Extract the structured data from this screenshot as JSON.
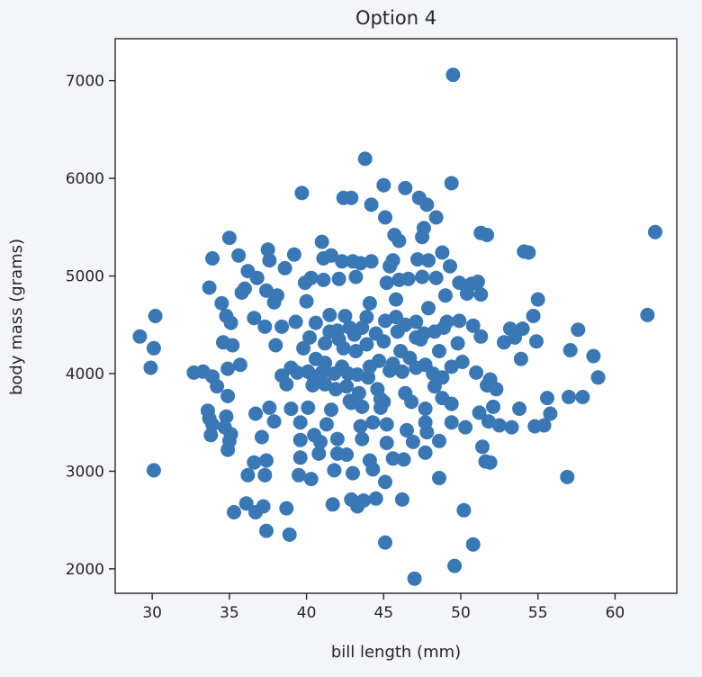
{
  "chart_data": {
    "type": "scatter",
    "title": "Option 4",
    "xlabel": "bill length (mm)",
    "ylabel": "body mass (grams)",
    "xlim": [
      27.6,
      64.0
    ],
    "ylim": [
      1750,
      7430
    ],
    "xticks": [
      30,
      35,
      40,
      45,
      50,
      55,
      60
    ],
    "yticks": [
      2000,
      3000,
      4000,
      5000,
      6000,
      7000
    ],
    "xtick_labels": [
      "30",
      "35",
      "40",
      "45",
      "50",
      "55",
      "60"
    ],
    "ytick_labels": [
      "2000",
      "3000",
      "4000",
      "5000",
      "6000",
      "7000"
    ],
    "grid": false,
    "marker_color": "#3a78b5",
    "points": [
      [
        49.5,
        7060
      ],
      [
        43.8,
        6200
      ],
      [
        39.7,
        5850
      ],
      [
        45.0,
        5930
      ],
      [
        46.4,
        5900
      ],
      [
        49.4,
        5950
      ],
      [
        42.4,
        5800
      ],
      [
        42.9,
        5800
      ],
      [
        44.2,
        5730
      ],
      [
        47.3,
        5800
      ],
      [
        47.8,
        5730
      ],
      [
        48.4,
        5600
      ],
      [
        45.1,
        5600
      ],
      [
        35.0,
        5390
      ],
      [
        41.0,
        5350
      ],
      [
        45.7,
        5420
      ],
      [
        47.6,
        5490
      ],
      [
        47.5,
        5400
      ],
      [
        51.3,
        5440
      ],
      [
        51.7,
        5420
      ],
      [
        54.1,
        5250
      ],
      [
        54.4,
        5240
      ],
      [
        62.6,
        5450
      ],
      [
        34.8,
        4590
      ],
      [
        33.9,
        5180
      ],
      [
        35.6,
        5210
      ],
      [
        36.2,
        5050
      ],
      [
        37.5,
        5270
      ],
      [
        37.6,
        5160
      ],
      [
        39.2,
        5220
      ],
      [
        41.1,
        5180
      ],
      [
        41.6,
        5210
      ],
      [
        42.3,
        5150
      ],
      [
        43.0,
        5150
      ],
      [
        43.5,
        5130
      ],
      [
        44.2,
        5150
      ],
      [
        45.4,
        5100
      ],
      [
        47.2,
        5170
      ],
      [
        47.9,
        5160
      ],
      [
        48.8,
        5240
      ],
      [
        49.3,
        5100
      ],
      [
        36.8,
        4980
      ],
      [
        38.6,
        5080
      ],
      [
        39.9,
        4930
      ],
      [
        40.3,
        4980
      ],
      [
        41.1,
        4960
      ],
      [
        42.1,
        4970
      ],
      [
        43.2,
        4990
      ],
      [
        45.2,
        4930
      ],
      [
        46.0,
        4960
      ],
      [
        46.6,
        4970
      ],
      [
        47.5,
        4990
      ],
      [
        48.4,
        4980
      ],
      [
        49.9,
        4930
      ],
      [
        50.7,
        4920
      ],
      [
        51.1,
        4940
      ],
      [
        33.7,
        4880
      ],
      [
        35.8,
        4830
      ],
      [
        37.4,
        4850
      ],
      [
        37.9,
        4730
      ],
      [
        40.0,
        4740
      ],
      [
        44.1,
        4720
      ],
      [
        45.8,
        4760
      ],
      [
        49.0,
        4800
      ],
      [
        50.4,
        4820
      ],
      [
        51.3,
        4810
      ],
      [
        55.0,
        4760
      ],
      [
        54.7,
        4590
      ],
      [
        34.5,
        4720
      ],
      [
        35.1,
        4520
      ],
      [
        36.6,
        4570
      ],
      [
        37.3,
        4480
      ],
      [
        38.4,
        4480
      ],
      [
        39.3,
        4530
      ],
      [
        40.6,
        4520
      ],
      [
        41.5,
        4430
      ],
      [
        42.0,
        4440
      ],
      [
        42.8,
        4470
      ],
      [
        43.1,
        4400
      ],
      [
        43.6,
        4470
      ],
      [
        44.5,
        4410
      ],
      [
        45.1,
        4540
      ],
      [
        45.9,
        4430
      ],
      [
        46.4,
        4500
      ],
      [
        47.1,
        4530
      ],
      [
        47.6,
        4410
      ],
      [
        48.3,
        4430
      ],
      [
        49.1,
        4530
      ],
      [
        49.9,
        4540
      ],
      [
        50.8,
        4490
      ],
      [
        53.2,
        4460
      ],
      [
        54.0,
        4460
      ],
      [
        57.6,
        4450
      ],
      [
        62.1,
        4600
      ],
      [
        29.2,
        4380
      ],
      [
        30.2,
        4590
      ],
      [
        30.1,
        4260
      ],
      [
        34.6,
        4320
      ],
      [
        35.2,
        4290
      ],
      [
        40.2,
        4370
      ],
      [
        41.2,
        4310
      ],
      [
        42.1,
        4350
      ],
      [
        43.9,
        4300
      ],
      [
        45.0,
        4330
      ],
      [
        46.1,
        4230
      ],
      [
        47.4,
        4350
      ],
      [
        48.6,
        4230
      ],
      [
        49.8,
        4310
      ],
      [
        51.3,
        4380
      ],
      [
        52.8,
        4320
      ],
      [
        53.5,
        4370
      ],
      [
        54.9,
        4330
      ],
      [
        57.1,
        4240
      ],
      [
        29.9,
        4060
      ],
      [
        32.7,
        4010
      ],
      [
        33.3,
        4020
      ],
      [
        33.9,
        3970
      ],
      [
        34.9,
        4050
      ],
      [
        35.7,
        4090
      ],
      [
        38.4,
        3980
      ],
      [
        39.4,
        4010
      ],
      [
        40.1,
        4020
      ],
      [
        40.5,
        3950
      ],
      [
        41.0,
        4010
      ],
      [
        41.8,
        4000
      ],
      [
        42.3,
        4070
      ],
      [
        42.7,
        4000
      ],
      [
        43.3,
        3990
      ],
      [
        44.1,
        4070
      ],
      [
        44.7,
        4130
      ],
      [
        45.6,
        4100
      ],
      [
        46.2,
        4020
      ],
      [
        47.1,
        4060
      ],
      [
        47.7,
        4090
      ],
      [
        48.2,
        4000
      ],
      [
        48.8,
        3960
      ],
      [
        49.4,
        4070
      ],
      [
        50.1,
        4120
      ],
      [
        51.0,
        4010
      ],
      [
        51.9,
        3940
      ],
      [
        53.9,
        4150
      ],
      [
        58.6,
        4180
      ],
      [
        58.9,
        3960
      ],
      [
        34.2,
        3870
      ],
      [
        34.9,
        3770
      ],
      [
        38.7,
        3890
      ],
      [
        40.4,
        3880
      ],
      [
        41.2,
        3890
      ],
      [
        41.9,
        3840
      ],
      [
        42.6,
        3870
      ],
      [
        43.4,
        3800
      ],
      [
        44.6,
        3840
      ],
      [
        46.4,
        3800
      ],
      [
        48.3,
        3870
      ],
      [
        51.7,
        3880
      ],
      [
        52.3,
        3840
      ],
      [
        55.6,
        3750
      ],
      [
        57.0,
        3760
      ],
      [
        57.9,
        3760
      ],
      [
        33.6,
        3620
      ],
      [
        34.8,
        3560
      ],
      [
        36.7,
        3590
      ],
      [
        37.6,
        3650
      ],
      [
        39.0,
        3640
      ],
      [
        40.1,
        3650
      ],
      [
        41.6,
        3630
      ],
      [
        42.9,
        3700
      ],
      [
        43.6,
        3660
      ],
      [
        45.0,
        3710
      ],
      [
        46.8,
        3710
      ],
      [
        47.7,
        3640
      ],
      [
        48.8,
        3750
      ],
      [
        49.4,
        3690
      ],
      [
        51.2,
        3600
      ],
      [
        52.1,
        3660
      ],
      [
        53.8,
        3640
      ],
      [
        55.4,
        3470
      ],
      [
        55.8,
        3590
      ],
      [
        33.9,
        3480
      ],
      [
        34.7,
        3450
      ],
      [
        35.1,
        3380
      ],
      [
        37.9,
        3510
      ],
      [
        39.6,
        3500
      ],
      [
        41.3,
        3480
      ],
      [
        43.5,
        3460
      ],
      [
        44.3,
        3500
      ],
      [
        45.2,
        3480
      ],
      [
        46.5,
        3420
      ],
      [
        47.7,
        3500
      ],
      [
        49.4,
        3500
      ],
      [
        50.3,
        3450
      ],
      [
        51.8,
        3510
      ],
      [
        52.5,
        3470
      ],
      [
        53.3,
        3450
      ],
      [
        54.8,
        3460
      ],
      [
        33.8,
        3370
      ],
      [
        35.0,
        3310
      ],
      [
        37.1,
        3350
      ],
      [
        39.6,
        3320
      ],
      [
        40.9,
        3300
      ],
      [
        42.0,
        3330
      ],
      [
        43.6,
        3330
      ],
      [
        45.2,
        3290
      ],
      [
        46.9,
        3300
      ],
      [
        47.8,
        3400
      ],
      [
        48.6,
        3310
      ],
      [
        51.4,
        3250
      ],
      [
        34.9,
        3220
      ],
      [
        36.6,
        3090
      ],
      [
        37.4,
        3110
      ],
      [
        39.6,
        3140
      ],
      [
        40.8,
        3180
      ],
      [
        42.0,
        3180
      ],
      [
        42.6,
        3170
      ],
      [
        44.1,
        3110
      ],
      [
        45.6,
        3130
      ],
      [
        46.3,
        3120
      ],
      [
        47.7,
        3190
      ],
      [
        51.6,
        3100
      ],
      [
        51.9,
        3090
      ],
      [
        30.1,
        3010
      ],
      [
        36.2,
        2960
      ],
      [
        37.3,
        2960
      ],
      [
        39.5,
        2960
      ],
      [
        40.3,
        2920
      ],
      [
        41.8,
        3010
      ],
      [
        43.0,
        2980
      ],
      [
        44.3,
        3020
      ],
      [
        45.1,
        2890
      ],
      [
        48.6,
        2930
      ],
      [
        56.9,
        2940
      ],
      [
        36.1,
        2670
      ],
      [
        36.7,
        2580
      ],
      [
        37.2,
        2640
      ],
      [
        38.7,
        2620
      ],
      [
        42.9,
        2710
      ],
      [
        43.3,
        2640
      ],
      [
        43.7,
        2700
      ],
      [
        44.5,
        2720
      ],
      [
        46.2,
        2710
      ],
      [
        50.2,
        2600
      ],
      [
        35.3,
        2580
      ],
      [
        37.4,
        2390
      ],
      [
        38.9,
        2350
      ],
      [
        45.1,
        2270
      ],
      [
        50.8,
        2250
      ],
      [
        49.6,
        2030
      ],
      [
        47.0,
        1900
      ],
      [
        41.7,
        2660
      ],
      [
        33.7,
        3540
      ],
      [
        40.5,
        3370
      ],
      [
        44.8,
        3650
      ],
      [
        46.7,
        4160
      ],
      [
        43.2,
        4230
      ],
      [
        42.5,
        4590
      ],
      [
        41.2,
        4110
      ],
      [
        39.8,
        4260
      ],
      [
        44.0,
        3960
      ],
      [
        45.8,
        4580
      ],
      [
        47.9,
        4670
      ],
      [
        38.0,
        4290
      ],
      [
        48.9,
        4470
      ],
      [
        46.0,
        5360
      ],
      [
        45.6,
        5160
      ],
      [
        40.6,
        4150
      ],
      [
        42.4,
        4260
      ],
      [
        43.9,
        4580
      ],
      [
        44.8,
        3740
      ],
      [
        39.0,
        4060
      ],
      [
        42.8,
        3720
      ],
      [
        45.4,
        4030
      ],
      [
        47.1,
        4370
      ],
      [
        41.5,
        4600
      ],
      [
        36.0,
        4870
      ],
      [
        38.1,
        4800
      ]
    ]
  }
}
